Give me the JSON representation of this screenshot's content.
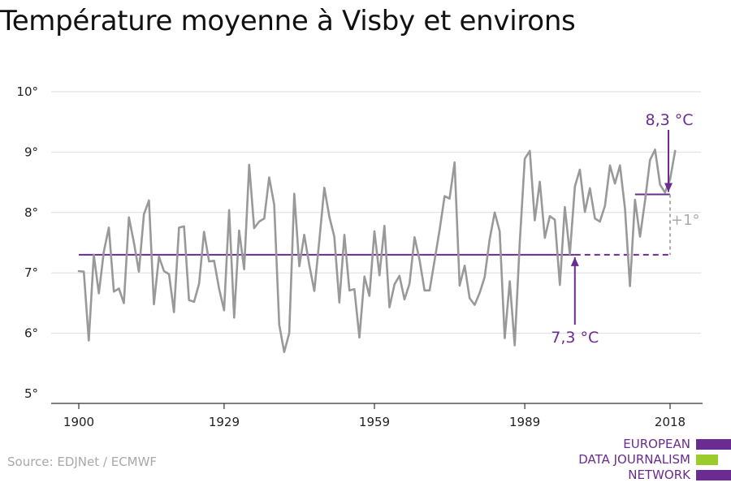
{
  "header": {
    "title": "Température moyenne à Visby et environs"
  },
  "footer": {
    "source": "Source: EDJNet / ECMWF"
  },
  "logo": {
    "lines": [
      "EUROPEAN",
      "DATA JOURNALISM",
      "NETWORK"
    ],
    "colors": [
      "#6b2c91",
      "#9ccc2c",
      "#6b2c91"
    ]
  },
  "colors": {
    "series": "#999999",
    "accent": "#6b2c91",
    "grid": "#dddddd",
    "annotation_grey": "#aaaaaa"
  },
  "chart_data": {
    "type": "line",
    "title": "Température moyenne à Visby et environs",
    "xlabel": "",
    "ylabel": "",
    "ylim": [
      5,
      10
    ],
    "yticks": [
      5,
      6,
      7,
      8,
      9,
      10
    ],
    "ytick_labels": [
      "5°",
      "6°",
      "7°",
      "8°",
      "9°",
      "10°"
    ],
    "xticks": [
      1900,
      1929,
      1959,
      1989,
      2018
    ],
    "xtick_labels": [
      "1900",
      "1929",
      "1959",
      "1989",
      "2018"
    ],
    "grid": true,
    "x": [
      1900,
      1901,
      1902,
      1903,
      1904,
      1905,
      1906,
      1907,
      1908,
      1909,
      1910,
      1911,
      1912,
      1913,
      1914,
      1915,
      1916,
      1917,
      1918,
      1919,
      1920,
      1921,
      1922,
      1923,
      1924,
      1925,
      1926,
      1927,
      1928,
      1929,
      1930,
      1931,
      1932,
      1933,
      1934,
      1935,
      1936,
      1937,
      1938,
      1939,
      1940,
      1941,
      1942,
      1943,
      1944,
      1945,
      1946,
      1947,
      1948,
      1949,
      1950,
      1951,
      1952,
      1953,
      1954,
      1955,
      1956,
      1957,
      1958,
      1959,
      1960,
      1961,
      1962,
      1963,
      1964,
      1965,
      1966,
      1967,
      1968,
      1969,
      1970,
      1971,
      1972,
      1973,
      1974,
      1975,
      1976,
      1977,
      1978,
      1979,
      1980,
      1981,
      1982,
      1983,
      1984,
      1985,
      1986,
      1987,
      1988,
      1989,
      1990,
      1991,
      1992,
      1993,
      1994,
      1995,
      1996,
      1997,
      1998,
      1999,
      2000,
      2001,
      2002,
      2003,
      2004,
      2005,
      2006,
      2007,
      2008,
      2009,
      2010,
      2011,
      2012,
      2013,
      2014,
      2015,
      2016,
      2017,
      2018,
      2019
    ],
    "series": [
      {
        "values": [
          7.03,
          7.02,
          5.88,
          7.3,
          6.66,
          7.35,
          7.75,
          6.69,
          6.74,
          6.5,
          7.92,
          7.5,
          7.02,
          7.97,
          8.2,
          6.48,
          7.27,
          7.03,
          6.98,
          6.35,
          7.75,
          7.77,
          6.55,
          6.52,
          6.82,
          7.68,
          7.19,
          7.2,
          6.74,
          6.38,
          8.04,
          6.26,
          7.7,
          7.06,
          8.79,
          7.74,
          7.85,
          7.9,
          8.58,
          8.13,
          6.14,
          5.69,
          6.0,
          8.31,
          7.11,
          7.63,
          7.13,
          6.7,
          7.53,
          8.41,
          7.93,
          7.6,
          6.51,
          7.63,
          6.71,
          6.73,
          5.93,
          6.94,
          6.62,
          7.69,
          6.96,
          7.78,
          6.43,
          6.81,
          6.95,
          6.56,
          6.82,
          7.59,
          7.22,
          6.71,
          6.71,
          7.2,
          7.71,
          8.27,
          8.23,
          8.83,
          6.79,
          7.12,
          6.58,
          6.47,
          6.67,
          6.93,
          7.56,
          8.0,
          7.69,
          5.92,
          6.86,
          5.8,
          7.5,
          8.89,
          9.02,
          7.87,
          8.51,
          7.58,
          7.94,
          7.88,
          6.8,
          8.09,
          7.31,
          8.43,
          8.71,
          8.01,
          8.4,
          7.9,
          7.85,
          8.11,
          8.78,
          8.48,
          8.78,
          8.06,
          6.78,
          8.21,
          7.6,
          8.2,
          8.87,
          9.04,
          8.46,
          8.33,
          8.55,
          9.02
        ]
      }
    ],
    "annotations": {
      "baseline": {
        "value": 7.3,
        "label": "7,3 °C",
        "from": 1900,
        "to": 2018
      },
      "recent": {
        "value": 8.3,
        "label": "8,3 °C",
        "from": 2011,
        "to": 2018
      },
      "difference": {
        "label": "+1°"
      }
    }
  }
}
